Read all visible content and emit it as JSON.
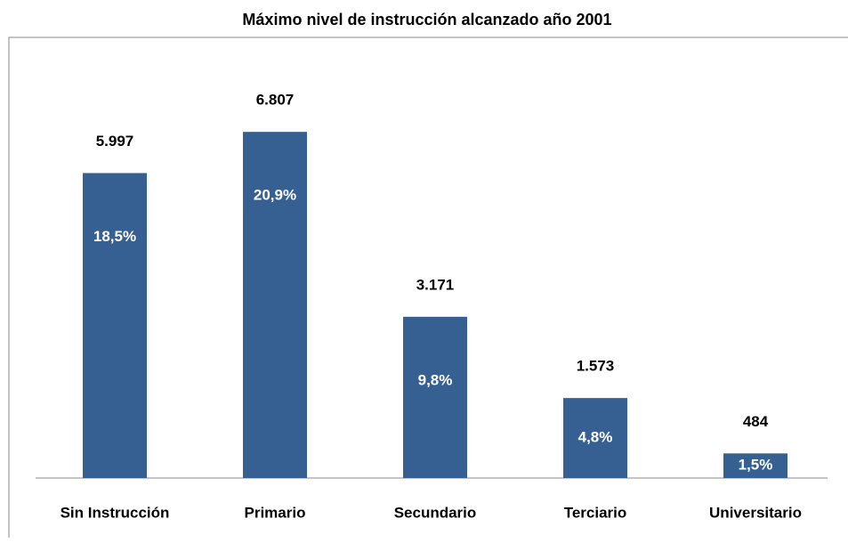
{
  "chart_data": {
    "type": "bar",
    "title": "Máximo nivel de instrucción alcanzado año 2001",
    "categories": [
      "Sin Instrucción",
      "Primario",
      "Secundario",
      "Terciario",
      "Universitario"
    ],
    "values": [
      5997,
      6807,
      3171,
      1573,
      484
    ],
    "value_labels": [
      "5.997",
      "6.807",
      "3.171",
      "1.573",
      "484"
    ],
    "percent_labels": [
      "18,5%",
      "20,9%",
      "9,8%",
      "4,8%",
      "1,5%"
    ],
    "color": "#376092",
    "ylim": [
      0,
      8000
    ]
  }
}
